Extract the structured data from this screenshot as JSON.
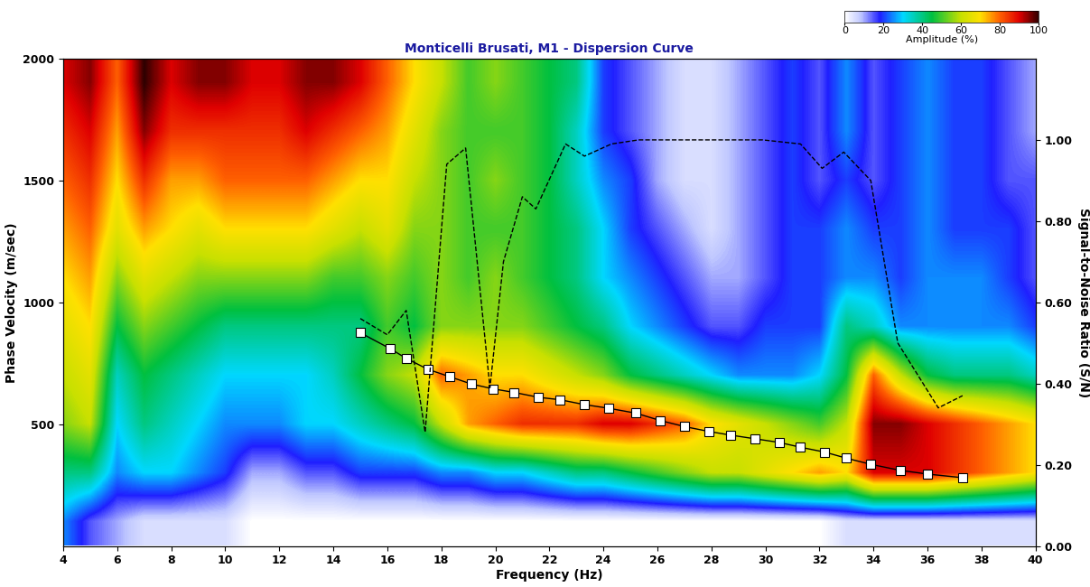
{
  "chart_data": {
    "type": "heatmap",
    "title": "Monticelli Brusati, M1 - Dispersion Curve",
    "x_label": "Frequency (Hz)",
    "y_label": "Phase Velocity (m/sec)",
    "y2_label": "Signal-to-Noise Ratio (S/N)",
    "xlim": [
      4,
      40
    ],
    "xticks": [
      4,
      6,
      8,
      10,
      12,
      14,
      16,
      18,
      20,
      22,
      24,
      26,
      28,
      30,
      32,
      34,
      36,
      38,
      40
    ],
    "ylim": [
      0,
      2000
    ],
    "yticks": [
      500,
      1000,
      1500,
      2000
    ],
    "y2lim": [
      0,
      1.2
    ],
    "y2ticks": [
      {
        "value": 0,
        "label": "0.00"
      },
      {
        "value": 0.2,
        "label": "0.20"
      },
      {
        "value": 0.4,
        "label": "0.40"
      },
      {
        "value": 0.6,
        "label": "0.60"
      },
      {
        "value": 0.8,
        "label": "0.80"
      },
      {
        "value": 1.0,
        "label": "1.00"
      }
    ],
    "heatmap": {
      "x": [
        4,
        5,
        6,
        7,
        8,
        9,
        10,
        11,
        12,
        13,
        14,
        15,
        16,
        17,
        18,
        19,
        20,
        21,
        22,
        23,
        24,
        25,
        26,
        27,
        28,
        29,
        30,
        31,
        32,
        33,
        34,
        35,
        36,
        37,
        38,
        39,
        40
      ],
      "y": [
        100,
        300,
        500,
        700,
        900,
        1100,
        1300,
        1500,
        1700,
        1900
      ],
      "values": [
        [
          25,
          15,
          10,
          5,
          5,
          5,
          5,
          0,
          0,
          0,
          0,
          0,
          0,
          0,
          0,
          0,
          0,
          0,
          0,
          0,
          0,
          0,
          0,
          0,
          0,
          0,
          0,
          0,
          0,
          5,
          5,
          5,
          5,
          5,
          5,
          5,
          5
        ],
        [
          40,
          40,
          25,
          30,
          30,
          25,
          20,
          10,
          10,
          15,
          15,
          20,
          20,
          20,
          25,
          25,
          30,
          30,
          35,
          40,
          40,
          45,
          50,
          55,
          60,
          60,
          65,
          70,
          75,
          70,
          90,
          90,
          90,
          85,
          80,
          75,
          70
        ],
        [
          55,
          60,
          30,
          40,
          35,
          30,
          25,
          25,
          25,
          30,
          30,
          35,
          40,
          45,
          60,
          75,
          80,
          85,
          85,
          85,
          90,
          90,
          85,
          80,
          70,
          65,
          60,
          55,
          50,
          60,
          95,
          95,
          90,
          85,
          80,
          75,
          70
        ],
        [
          60,
          65,
          35,
          45,
          40,
          35,
          30,
          30,
          30,
          30,
          35,
          45,
          55,
          60,
          80,
          75,
          70,
          70,
          65,
          60,
          55,
          45,
          40,
          35,
          30,
          25,
          25,
          25,
          30,
          45,
          80,
          60,
          45,
          40,
          40,
          40,
          35
        ],
        [
          65,
          70,
          45,
          55,
          50,
          45,
          40,
          40,
          40,
          40,
          40,
          40,
          50,
          45,
          55,
          55,
          55,
          55,
          50,
          45,
          40,
          30,
          25,
          20,
          15,
          15,
          20,
          20,
          20,
          40,
          35,
          25,
          25,
          25,
          25,
          25,
          20
        ],
        [
          70,
          75,
          55,
          65,
          60,
          55,
          55,
          55,
          55,
          55,
          50,
          50,
          55,
          50,
          55,
          50,
          55,
          50,
          45,
          40,
          30,
          25,
          20,
          15,
          10,
          10,
          15,
          20,
          20,
          25,
          25,
          20,
          25,
          25,
          25,
          20,
          15
        ],
        [
          75,
          80,
          65,
          75,
          70,
          65,
          70,
          70,
          70,
          70,
          65,
          60,
          65,
          55,
          55,
          50,
          50,
          50,
          45,
          40,
          30,
          20,
          15,
          10,
          5,
          10,
          15,
          20,
          20,
          25,
          20,
          20,
          25,
          20,
          20,
          20,
          15
        ],
        [
          80,
          85,
          70,
          85,
          75,
          75,
          80,
          80,
          80,
          80,
          75,
          70,
          70,
          60,
          55,
          50,
          55,
          50,
          45,
          35,
          25,
          20,
          10,
          5,
          5,
          10,
          15,
          20,
          15,
          20,
          15,
          20,
          25,
          20,
          20,
          15,
          15
        ],
        [
          85,
          90,
          75,
          95,
          85,
          85,
          85,
          85,
          85,
          90,
          85,
          80,
          75,
          65,
          55,
          50,
          50,
          50,
          45,
          35,
          20,
          15,
          10,
          5,
          5,
          10,
          15,
          20,
          15,
          25,
          15,
          20,
          25,
          20,
          20,
          15,
          10
        ],
        [
          90,
          95,
          80,
          100,
          90,
          95,
          95,
          90,
          90,
          95,
          95,
          90,
          80,
          70,
          60,
          50,
          55,
          50,
          45,
          40,
          20,
          15,
          10,
          5,
          5,
          10,
          15,
          20,
          15,
          25,
          15,
          20,
          25,
          20,
          20,
          15,
          10
        ]
      ]
    },
    "colorbar": {
      "label": "Amplitude (%)",
      "range": [
        0,
        100
      ],
      "ticks": [
        0,
        20,
        40,
        60,
        80,
        100
      ]
    },
    "series": [
      {
        "type": "line",
        "color": "#000000",
        "marker": "square",
        "line_style": "solid",
        "x": [
          15.0,
          16.1,
          16.7,
          17.5,
          18.3,
          19.1,
          19.9,
          20.7,
          21.6,
          22.4,
          23.3,
          24.2,
          25.2,
          26.1,
          27.0,
          27.9,
          28.7,
          29.6,
          30.5,
          31.3,
          32.2,
          33.0,
          33.9,
          35.0,
          36.0,
          37.3
        ],
        "values": [
          875,
          810,
          770,
          725,
          695,
          665,
          645,
          630,
          610,
          600,
          580,
          565,
          545,
          515,
          490,
          470,
          455,
          440,
          425,
          405,
          385,
          360,
          335,
          310,
          295,
          280
        ]
      },
      {
        "type": "line",
        "color": "#000000",
        "marker": "none",
        "line_style": "dashed",
        "axis": "y2",
        "x": [
          15.0,
          16.0,
          16.7,
          17.4,
          18.2,
          18.9,
          19.8,
          20.3,
          21.0,
          21.5,
          22.6,
          23.3,
          24.3,
          25.3,
          26.1,
          27.9,
          29.9,
          31.3,
          32.1,
          32.9,
          33.9,
          34.9,
          36.4,
          37.3
        ],
        "values": [
          0.56,
          0.52,
          0.58,
          0.28,
          0.94,
          0.98,
          0.39,
          0.7,
          0.86,
          0.83,
          0.99,
          0.96,
          0.99,
          1.0,
          1.0,
          1.0,
          1.0,
          0.99,
          0.93,
          0.97,
          0.9,
          0.5,
          0.34,
          0.37
        ]
      }
    ]
  }
}
